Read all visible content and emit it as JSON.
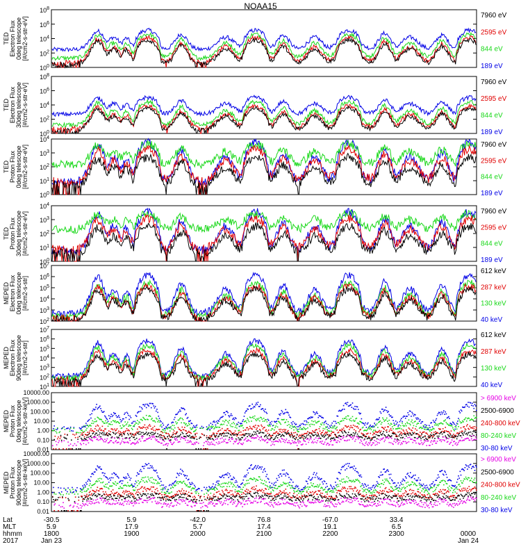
{
  "title": "NOAA15",
  "colors": {
    "black": "#000000",
    "red": "#e00000",
    "green": "#18d818",
    "blue": "#0000e6",
    "magenta": "#e600e6"
  },
  "chart_data": [
    {
      "type": "line",
      "ylabel": [
        "TED",
        "Electron Flux",
        "0deg telescope",
        "[#/cm2-s-str-eV]"
      ],
      "yticks": [
        "10^8",
        "10^6",
        "10^4",
        "10^2",
        "10^0"
      ],
      "ylog": true,
      "ylim": [
        1,
        100000000
      ],
      "legend": [
        {
          "label": "7960 eV",
          "color": "black"
        },
        {
          "label": "2595 eV",
          "color": "red"
        },
        {
          "label": "844 eV",
          "color": "green"
        },
        {
          "label": "189 eV",
          "color": "blue"
        }
      ],
      "series": [
        {
          "name": "7960 eV",
          "baseline": 3,
          "peaks": 9000
        },
        {
          "name": "2595 eV",
          "baseline": 5,
          "peaks": 20000
        },
        {
          "name": "844 eV",
          "baseline": 20,
          "peaks": 60000
        },
        {
          "name": "189 eV",
          "baseline": 300,
          "peaks": 200000
        }
      ]
    },
    {
      "type": "line",
      "ylabel": [
        "TED",
        "Electron Flux",
        "30deg telescope",
        "[#/cm2-s-str-eV]"
      ],
      "yticks": [
        "10^8",
        "10^6",
        "10^4",
        "10^2",
        "10^0"
      ],
      "ylog": true,
      "ylim": [
        1,
        100000000
      ],
      "legend": [
        {
          "label": "7960 eV",
          "color": "black"
        },
        {
          "label": "2595 eV",
          "color": "red"
        },
        {
          "label": "844 eV",
          "color": "green"
        },
        {
          "label": "189 eV",
          "color": "blue"
        }
      ],
      "series": [
        {
          "name": "7960 eV",
          "baseline": 3,
          "peaks": 5000
        },
        {
          "name": "2595 eV",
          "baseline": 5,
          "peaks": 10000
        },
        {
          "name": "844 eV",
          "baseline": 15,
          "peaks": 40000
        },
        {
          "name": "189 eV",
          "baseline": 500,
          "peaks": 150000
        }
      ]
    },
    {
      "type": "line",
      "ylabel": [
        "TED",
        "Proton Flux",
        "0deg telescope",
        "[#/cm2-s-str-eV]"
      ],
      "yticks": [
        "10^4",
        "10^3",
        "10^2",
        "10^1",
        "10^0"
      ],
      "ylog": true,
      "ylim": [
        1,
        10000
      ],
      "legend": [
        {
          "label": "7960 eV",
          "color": "black"
        },
        {
          "label": "2595 eV",
          "color": "red"
        },
        {
          "label": "844 eV",
          "color": "green"
        },
        {
          "label": "189 eV",
          "color": "blue"
        }
      ],
      "series": [
        {
          "name": "7960 eV",
          "baseline": 5,
          "peaks": 600
        },
        {
          "name": "2595 eV",
          "baseline": 10,
          "peaks": 2500
        },
        {
          "name": "844 eV",
          "baseline": 150,
          "peaks": 5000
        },
        {
          "name": "189 eV",
          "baseline": 8,
          "peaks": 8000
        }
      ]
    },
    {
      "type": "line",
      "ylabel": [
        "TED",
        "Proton Flux",
        "30deg telescope",
        "[#/cm2-s-str-eV]"
      ],
      "yticks": [
        "10^4",
        "10^3",
        "10^2",
        "10^1",
        "10^0"
      ],
      "ylog": true,
      "ylim": [
        1,
        10000
      ],
      "legend": [
        {
          "label": "7960 eV",
          "color": "black"
        },
        {
          "label": "2595 eV",
          "color": "red"
        },
        {
          "label": "844 eV",
          "color": "green"
        },
        {
          "label": "189 eV",
          "color": "blue"
        }
      ],
      "series": [
        {
          "name": "7960 eV",
          "baseline": 4,
          "peaks": 400
        },
        {
          "name": "2595 eV",
          "baseline": 8,
          "peaks": 1500
        },
        {
          "name": "844 eV",
          "baseline": 200,
          "peaks": 3000
        },
        {
          "name": "189 eV",
          "baseline": 6,
          "peaks": 5000
        }
      ]
    },
    {
      "type": "line",
      "ylabel": [
        "MEPED",
        "Electron Flux",
        "0deg telescope",
        "[#/cm2-s-str]"
      ],
      "yticks": [
        "10^7",
        "10^6",
        "10^5",
        "10^4",
        "10^3",
        "10^2"
      ],
      "ylog": true,
      "ylim": [
        100,
        10000000
      ],
      "legend": [
        {
          "label": "612 keV",
          "color": "black"
        },
        {
          "label": "287 keV",
          "color": "red"
        },
        {
          "label": "130 keV",
          "color": "green"
        },
        {
          "label": "40 keV",
          "color": "blue"
        }
      ],
      "series": [
        {
          "name": "612 keV",
          "baseline": 150,
          "peaks": 100000
        },
        {
          "name": "287 keV",
          "baseline": 200,
          "peaks": 200000
        },
        {
          "name": "130 keV",
          "baseline": 250,
          "peaks": 400000
        },
        {
          "name": "40 keV",
          "baseline": 500,
          "peaks": 2000000
        }
      ]
    },
    {
      "type": "line",
      "ylabel": [
        "MEPED",
        "Electron Flux",
        "90deg telescope",
        "[#/cm2-s-str]"
      ],
      "yticks": [
        "10^7",
        "10^6",
        "10^5",
        "10^4",
        "10^3",
        "10^2",
        "10^1"
      ],
      "ylog": true,
      "ylim": [
        10,
        10000000
      ],
      "legend": [
        {
          "label": "612 keV",
          "color": "black"
        },
        {
          "label": "287 keV",
          "color": "red"
        },
        {
          "label": "130 keV",
          "color": "green"
        },
        {
          "label": "40 keV",
          "color": "blue"
        }
      ],
      "series": [
        {
          "name": "612 keV",
          "baseline": 40,
          "peaks": 30000
        },
        {
          "name": "287 keV",
          "baseline": 60,
          "peaks": 80000
        },
        {
          "name": "130 keV",
          "baseline": 80,
          "peaks": 300000
        },
        {
          "name": "40 keV",
          "baseline": 120,
          "peaks": 1000000
        }
      ]
    },
    {
      "type": "scatter",
      "ylabel": [
        "MEPED",
        "Proton Flux",
        "0deg telescope",
        "[#/cm2-s-str-keV]"
      ],
      "yticks": [
        "10000.00",
        "1000.00",
        "100.00",
        "10.00",
        "1.00",
        "0.10",
        "0.01"
      ],
      "ylog": true,
      "ylim": [
        0.01,
        10000
      ],
      "legend": [
        {
          "label": "> 6900 keV",
          "color": "magenta"
        },
        {
          "label": "2500-6900",
          "color": "black"
        },
        {
          "label": "240-800 keV",
          "color": "red"
        },
        {
          "label": "80-240 keV",
          "color": "green"
        },
        {
          "label": "30-80 keV",
          "color": "blue"
        }
      ],
      "series": [
        {
          "name": "> 6900 keV",
          "baseline": 0.05,
          "peaks": 0.2
        },
        {
          "name": "2500-6900",
          "baseline": 0.2,
          "peaks": 0.6
        },
        {
          "name": "240-800 keV",
          "baseline": 0.3,
          "peaks": 3
        },
        {
          "name": "80-240 keV",
          "baseline": 1.2,
          "peaks": 30
        },
        {
          "name": "30-80 keV",
          "baseline": 2,
          "peaks": 800
        }
      ]
    },
    {
      "type": "scatter",
      "ylabel": [
        "MEPED",
        "Proton Flux",
        "90deg telescope",
        "[#/cm2-s-str-keV]"
      ],
      "yticks": [
        "10000.00",
        "1000.00",
        "100.00",
        "10.00",
        "1.00",
        "0.10",
        "0.01"
      ],
      "ylog": true,
      "ylim": [
        0.01,
        10000
      ],
      "legend": [
        {
          "label": "> 6900 keV",
          "color": "magenta"
        },
        {
          "label": "2500-6900",
          "color": "black"
        },
        {
          "label": "240-800 keV",
          "color": "red"
        },
        {
          "label": "80-240 keV",
          "color": "green"
        },
        {
          "label": "30-80 keV",
          "color": "blue"
        }
      ],
      "series": [
        {
          "name": "> 6900 keV",
          "baseline": 0.05,
          "peaks": 0.2
        },
        {
          "name": "2500-6900",
          "baseline": 0.2,
          "peaks": 0.6
        },
        {
          "name": "240-800 keV",
          "baseline": 0.3,
          "peaks": 3
        },
        {
          "name": "80-240 keV",
          "baseline": 1.2,
          "peaks": 30
        },
        {
          "name": "30-80 keV",
          "baseline": 2,
          "peaks": 800
        }
      ]
    }
  ],
  "bottom_axis": {
    "row_labels": [
      "Lat",
      "MLT",
      "hhmm",
      "2017"
    ],
    "ticks": [
      {
        "Lat": "-30.5",
        "MLT": "5.9",
        "hhmm": "1800",
        "date": "Jan 23"
      },
      {
        "Lat": "5.9",
        "MLT": "17.9",
        "hhmm": "1900",
        "date": ""
      },
      {
        "Lat": "-42.0",
        "MLT": "5.7",
        "hhmm": "2000",
        "date": ""
      },
      {
        "Lat": "76.8",
        "MLT": "17.4",
        "hhmm": "2100",
        "date": ""
      },
      {
        "Lat": "-67.0",
        "MLT": "19.1",
        "hhmm": "2200",
        "date": ""
      },
      {
        "Lat": "33.4",
        "MLT": "6.5",
        "hhmm": "2300",
        "date": ""
      },
      {
        "Lat": "",
        "MLT": "",
        "hhmm": "0000",
        "date": "Jan 24"
      }
    ]
  }
}
